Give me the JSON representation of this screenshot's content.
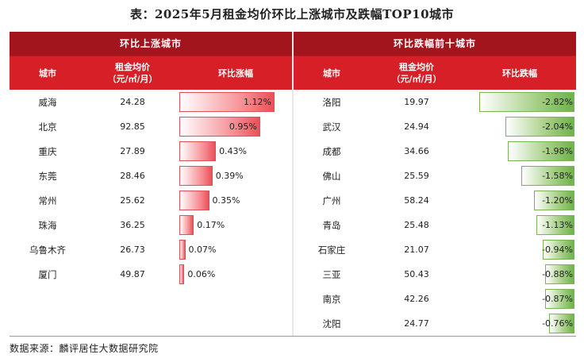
{
  "title": "表：2025年5月租金均价环比上涨城市及跌幅TOP10城市",
  "left_table": {
    "section_title": "环比上涨城市",
    "headers": {
      "city": "城市",
      "price_line1": "租金均价",
      "price_line2": "（元/㎡/月）",
      "change": "环比涨幅"
    },
    "rows": [
      {
        "city": "威海",
        "price": "24.28",
        "change": "1.12%",
        "value": 1.12
      },
      {
        "city": "北京",
        "price": "92.85",
        "change": "0.95%",
        "value": 0.95
      },
      {
        "city": "重庆",
        "price": "27.89",
        "change": "0.43%",
        "value": 0.43
      },
      {
        "city": "东莞",
        "price": "28.46",
        "change": "0.39%",
        "value": 0.39
      },
      {
        "city": "常州",
        "price": "25.62",
        "change": "0.35%",
        "value": 0.35
      },
      {
        "city": "珠海",
        "price": "36.25",
        "change": "0.17%",
        "value": 0.17
      },
      {
        "city": "乌鲁木齐",
        "price": "26.73",
        "change": "0.07%",
        "value": 0.07
      },
      {
        "city": "厦门",
        "price": "49.87",
        "change": "0.06%",
        "value": 0.06
      }
    ],
    "bar_color": "#ec4f57"
  },
  "right_table": {
    "section_title": "环比跌幅前十城市",
    "headers": {
      "city": "城市",
      "price_line1": "租金均价",
      "price_line2": "（元/㎡/月）",
      "change": "环比跌幅"
    },
    "rows": [
      {
        "city": "洛阳",
        "price": "19.97",
        "change": "-2.82%",
        "value": -2.82
      },
      {
        "city": "武汉",
        "price": "24.94",
        "change": "-2.04%",
        "value": -2.04
      },
      {
        "city": "成都",
        "price": "34.66",
        "change": "-1.98%",
        "value": -1.98
      },
      {
        "city": "佛山",
        "price": "25.59",
        "change": "-1.58%",
        "value": -1.58
      },
      {
        "city": "广州",
        "price": "58.24",
        "change": "-1.20%",
        "value": -1.2
      },
      {
        "city": "青岛",
        "price": "25.48",
        "change": "-1.13%",
        "value": -1.13
      },
      {
        "city": "石家庄",
        "price": "21.07",
        "change": "-0.94%",
        "value": -0.94
      },
      {
        "city": "三亚",
        "price": "50.43",
        "change": "-0.88%",
        "value": -0.88
      },
      {
        "city": "南京",
        "price": "42.26",
        "change": "-0.87%",
        "value": -0.87
      },
      {
        "city": "沈阳",
        "price": "24.77",
        "change": "-0.76%",
        "value": -0.76
      }
    ],
    "bar_color": "#6fb24a"
  },
  "source": "数据来源：麟评居住大数据研究院"
}
